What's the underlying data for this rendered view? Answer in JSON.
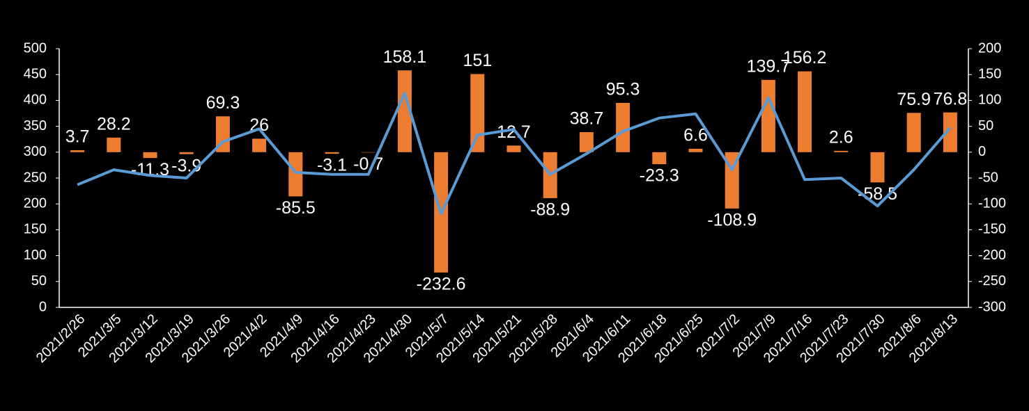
{
  "chart_data": {
    "type": "bar-line",
    "categories": [
      "2021/2/26",
      "2021/3/5",
      "2021/3/12",
      "2021/3/19",
      "2021/3/26",
      "2021/4/2",
      "2021/4/9",
      "2021/4/16",
      "2021/4/23",
      "2021/4/30",
      "2021/5/7",
      "2021/5/14",
      "2021/5/21",
      "2021/5/28",
      "2021/6/4",
      "2021/6/11",
      "2021/6/18",
      "2021/6/25",
      "2021/7/2",
      "2021/7/9",
      "2021/7/16",
      "2021/7/23",
      "2021/7/30",
      "2021/8/6",
      "2021/8/13"
    ],
    "series": [
      {
        "type": "bar",
        "axis": "y2",
        "color": "#ed7d31",
        "values": [
          3.7,
          28.2,
          -11.3,
          -3.9,
          69.3,
          26,
          -85.5,
          -3.1,
          -0.7,
          158.1,
          -232.6,
          151,
          12.7,
          -88.9,
          38.7,
          95.3,
          -23.3,
          6.6,
          -108.9,
          139.7,
          156.2,
          2.6,
          -58.5,
          75.9,
          76.8
        ]
      },
      {
        "type": "line",
        "axis": "y",
        "color": "#5b9bd5",
        "values": [
          237,
          266,
          255,
          250,
          320,
          345,
          261,
          257,
          257,
          414,
          181,
          333,
          344,
          257,
          297,
          340,
          366,
          374,
          266,
          405,
          247,
          250,
          196,
          266,
          347
        ]
      }
    ],
    "ylim": [
      0,
      500
    ],
    "yticks": [
      0,
      50,
      100,
      150,
      200,
      250,
      300,
      350,
      400,
      450,
      500
    ],
    "y2lim": [
      -300,
      200
    ],
    "y2ticks": [
      -300,
      -250,
      -200,
      -150,
      -100,
      -50,
      0,
      50,
      100,
      150,
      200
    ],
    "grid": false
  }
}
